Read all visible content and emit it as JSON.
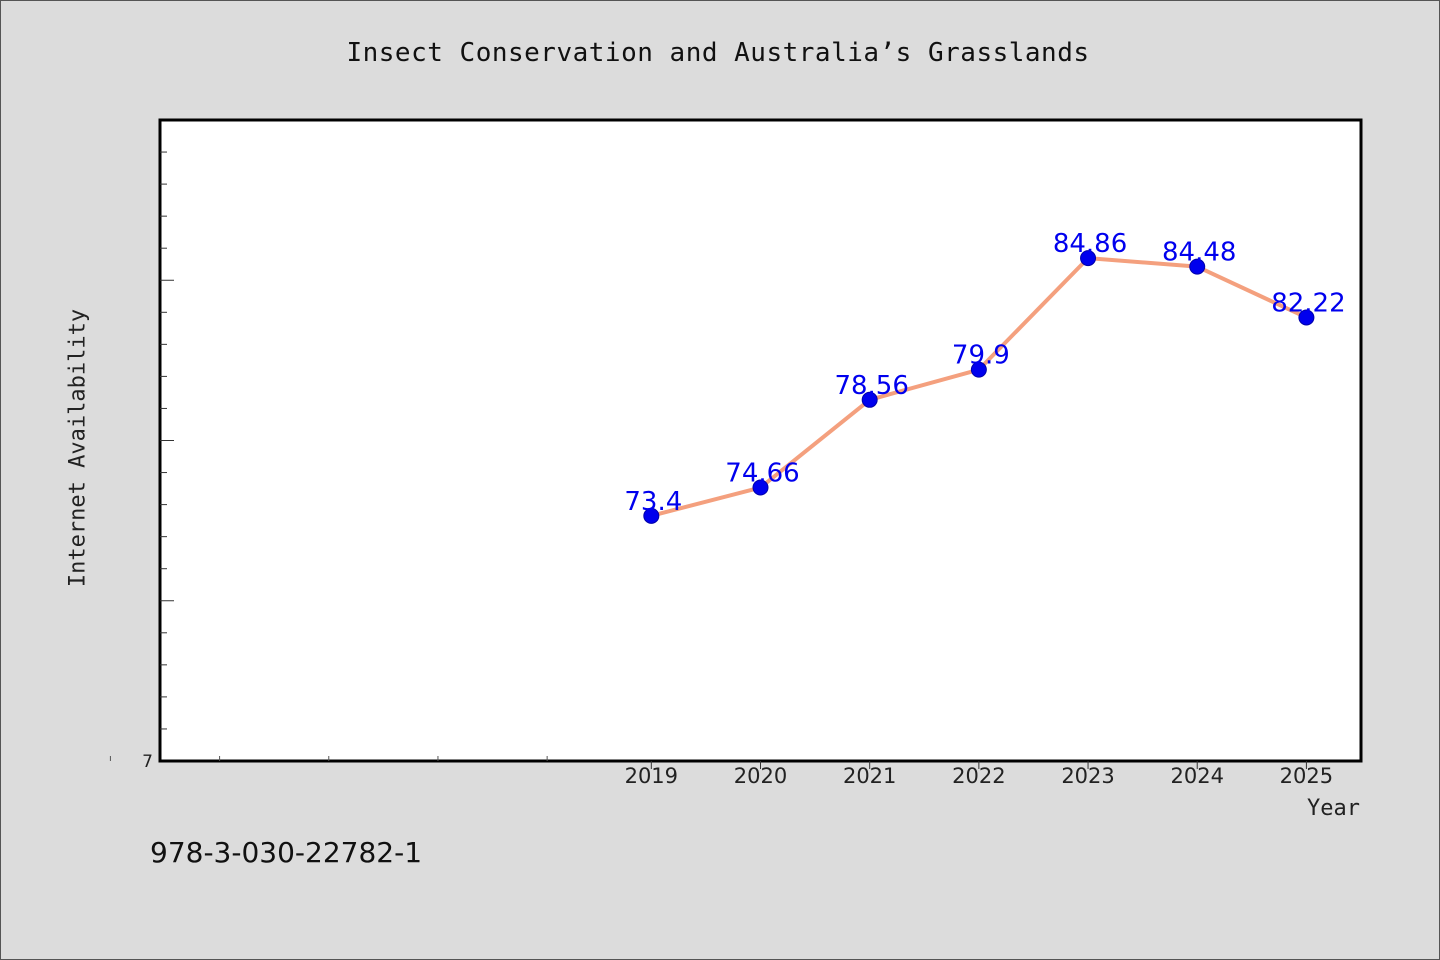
{
  "page": {
    "isbn": "978-3-030-22782-1"
  },
  "chart_data": {
    "type": "line",
    "title": "Insect Conservation and Australia’s Grasslands",
    "xlabel": "Year",
    "ylabel": "Internet Availability",
    "x": [
      2019,
      2020,
      2021,
      2022,
      2023,
      2024,
      2025
    ],
    "series": [
      {
        "values": [
          73.4,
          74.66,
          78.56,
          79.9,
          84.86,
          84.48,
          82.22
        ],
        "data_labels": [
          "73.4",
          "74.66",
          "78.56",
          "79.9",
          "84.86",
          "84.48",
          "82.22"
        ],
        "line_color": "#f4a07e",
        "marker_color": "#0000ee"
      }
    ],
    "y_tick_label": "7",
    "x_minor_ticks": [
      2014,
      2015,
      2016,
      2017,
      2018
    ],
    "ylim": [
      62.5,
      91.0
    ],
    "xlim": [
      2014.5,
      2025.5
    ],
    "grid": false,
    "legend": "none",
    "colors": {
      "plot_background": "#ffffff",
      "page_background": "#dcdcdc",
      "data_label": "#0000ee"
    }
  }
}
